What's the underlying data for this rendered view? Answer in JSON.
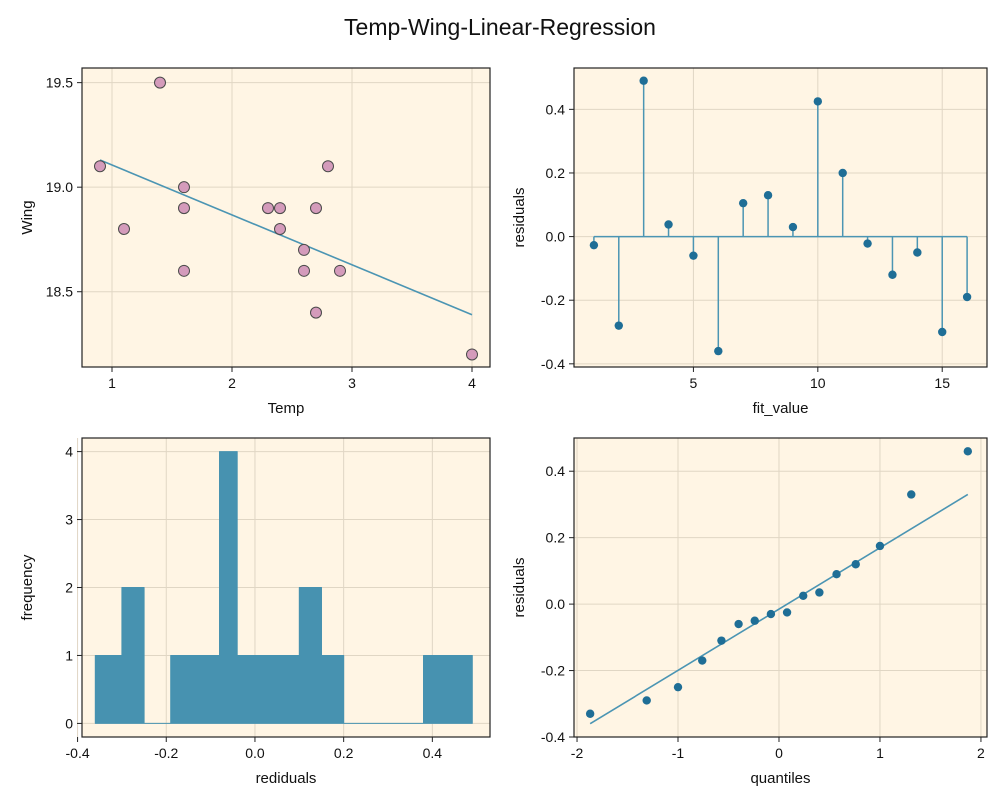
{
  "figure": {
    "title": "Temp-Wing-Linear-Regression"
  },
  "colors": {
    "panel_bg": "#fff5e4",
    "scatter_fill": "#d49bbb",
    "scatter_stroke": "#4a4a4a",
    "line": "#4b95b3",
    "marker": "#1f6e96",
    "bar": "#4792b0",
    "grid": "#e0d6c4"
  },
  "chart_data": [
    {
      "type": "scatter",
      "title": "",
      "xlabel": "Temp",
      "ylabel": "Wing",
      "xlim": [
        0.75,
        4.15
      ],
      "ylim": [
        18.14,
        19.57
      ],
      "xticks": [
        1,
        2,
        3,
        4
      ],
      "xtick_labels": [
        "1",
        "2",
        "3",
        "4"
      ],
      "yticks": [
        18.5,
        19.0,
        19.5
      ],
      "ytick_labels": [
        "18.5",
        "19.0",
        "19.5"
      ],
      "grid": true,
      "points": [
        {
          "x": 0.9,
          "y": 19.1
        },
        {
          "x": 1.1,
          "y": 18.8
        },
        {
          "x": 1.4,
          "y": 19.5
        },
        {
          "x": 1.6,
          "y": 19.0
        },
        {
          "x": 1.6,
          "y": 18.9
        },
        {
          "x": 1.6,
          "y": 18.6
        },
        {
          "x": 2.3,
          "y": 18.9
        },
        {
          "x": 2.4,
          "y": 18.9
        },
        {
          "x": 2.4,
          "y": 18.8
        },
        {
          "x": 2.6,
          "y": 18.7
        },
        {
          "x": 2.6,
          "y": 18.6
        },
        {
          "x": 2.7,
          "y": 18.9
        },
        {
          "x": 2.7,
          "y": 18.4
        },
        {
          "x": 2.8,
          "y": 19.1
        },
        {
          "x": 2.9,
          "y": 18.6
        },
        {
          "x": 4.0,
          "y": 18.2
        }
      ],
      "fit_line": [
        {
          "x": 0.9,
          "y": 19.13
        },
        {
          "x": 4.0,
          "y": 18.39
        }
      ]
    },
    {
      "type": "stem",
      "title": "",
      "xlabel": "fit_value",
      "ylabel": "residuals",
      "xlim": [
        0.2,
        16.8
      ],
      "ylim": [
        -0.41,
        0.53
      ],
      "xticks": [
        5,
        10,
        15
      ],
      "xtick_labels": [
        "5",
        "10",
        "15"
      ],
      "yticks": [
        -0.4,
        -0.2,
        0.0,
        0.2,
        0.4
      ],
      "ytick_labels": [
        "-0.4",
        "-0.2",
        "0.0",
        "0.2",
        "0.4"
      ],
      "grid": true,
      "x": [
        1,
        2,
        3,
        4,
        5,
        6,
        7,
        8,
        9,
        10,
        11,
        12,
        13,
        14,
        15,
        16
      ],
      "values": [
        -0.027,
        -0.28,
        0.49,
        0.038,
        -0.06,
        -0.36,
        0.105,
        0.13,
        0.03,
        0.425,
        0.2,
        -0.022,
        -0.12,
        -0.05,
        -0.3,
        -0.19
      ]
    },
    {
      "type": "bar",
      "title": "",
      "xlabel": "rediduals",
      "ylabel": "frequency",
      "xlim": [
        -0.39,
        0.53
      ],
      "ylim": [
        -0.2,
        4.2
      ],
      "xticks": [
        -0.4,
        -0.2,
        0.0,
        0.2,
        0.4
      ],
      "xtick_labels": [
        "-0.4",
        "-0.2",
        "0.0",
        "0.2",
        "0.4"
      ],
      "yticks": [
        0,
        1,
        2,
        3,
        4
      ],
      "ytick_labels": [
        "0",
        "1",
        "2",
        "3",
        "4"
      ],
      "grid": true,
      "histogram_outline": [
        {
          "x": -0.36,
          "y": 1
        },
        {
          "x": -0.3,
          "y": 1
        },
        {
          "x": -0.3,
          "y": 2
        },
        {
          "x": -0.25,
          "y": 2
        },
        {
          "x": -0.25,
          "y": 0
        },
        {
          "x": -0.19,
          "y": 0
        },
        {
          "x": -0.19,
          "y": 1
        },
        {
          "x": -0.08,
          "y": 1
        },
        {
          "x": -0.08,
          "y": 4
        },
        {
          "x": -0.04,
          "y": 4
        },
        {
          "x": -0.04,
          "y": 1
        },
        {
          "x": 0.1,
          "y": 1
        },
        {
          "x": 0.1,
          "y": 2
        },
        {
          "x": 0.15,
          "y": 2
        },
        {
          "x": 0.15,
          "y": 1
        },
        {
          "x": 0.2,
          "y": 1
        },
        {
          "x": 0.2,
          "y": 0
        },
        {
          "x": 0.38,
          "y": 0
        },
        {
          "x": 0.38,
          "y": 1
        },
        {
          "x": 0.49,
          "y": 1
        },
        {
          "x": 0.49,
          "y": 0
        },
        {
          "x": -0.36,
          "y": 0
        }
      ]
    },
    {
      "type": "scatter",
      "title": "",
      "xlabel": "quantiles",
      "ylabel": "residuals",
      "xlim": [
        -2.03,
        2.06
      ],
      "ylim": [
        -0.4,
        0.5
      ],
      "xticks": [
        -2,
        -1,
        0,
        1,
        2
      ],
      "xtick_labels": [
        "-2",
        "-1",
        "0",
        "1",
        "2"
      ],
      "yticks": [
        -0.4,
        -0.2,
        0.0,
        0.2,
        0.4
      ],
      "ytick_labels": [
        "-0.4",
        "-0.2",
        "0.0",
        "0.2",
        "0.4"
      ],
      "grid": true,
      "points": [
        {
          "x": -1.87,
          "y": -0.33
        },
        {
          "x": -1.31,
          "y": -0.29
        },
        {
          "x": -1.0,
          "y": -0.25
        },
        {
          "x": -0.76,
          "y": -0.17
        },
        {
          "x": -0.57,
          "y": -0.11
        },
        {
          "x": -0.4,
          "y": -0.06
        },
        {
          "x": -0.24,
          "y": -0.05
        },
        {
          "x": -0.08,
          "y": -0.03
        },
        {
          "x": 0.08,
          "y": -0.025
        },
        {
          "x": 0.24,
          "y": 0.025
        },
        {
          "x": 0.4,
          "y": 0.035
        },
        {
          "x": 0.57,
          "y": 0.09
        },
        {
          "x": 0.76,
          "y": 0.12
        },
        {
          "x": 1.0,
          "y": 0.175
        },
        {
          "x": 1.31,
          "y": 0.33
        },
        {
          "x": 1.87,
          "y": 0.46
        }
      ],
      "fit_line": [
        {
          "x": -1.87,
          "y": -0.36
        },
        {
          "x": 1.87,
          "y": 0.33
        }
      ]
    }
  ]
}
